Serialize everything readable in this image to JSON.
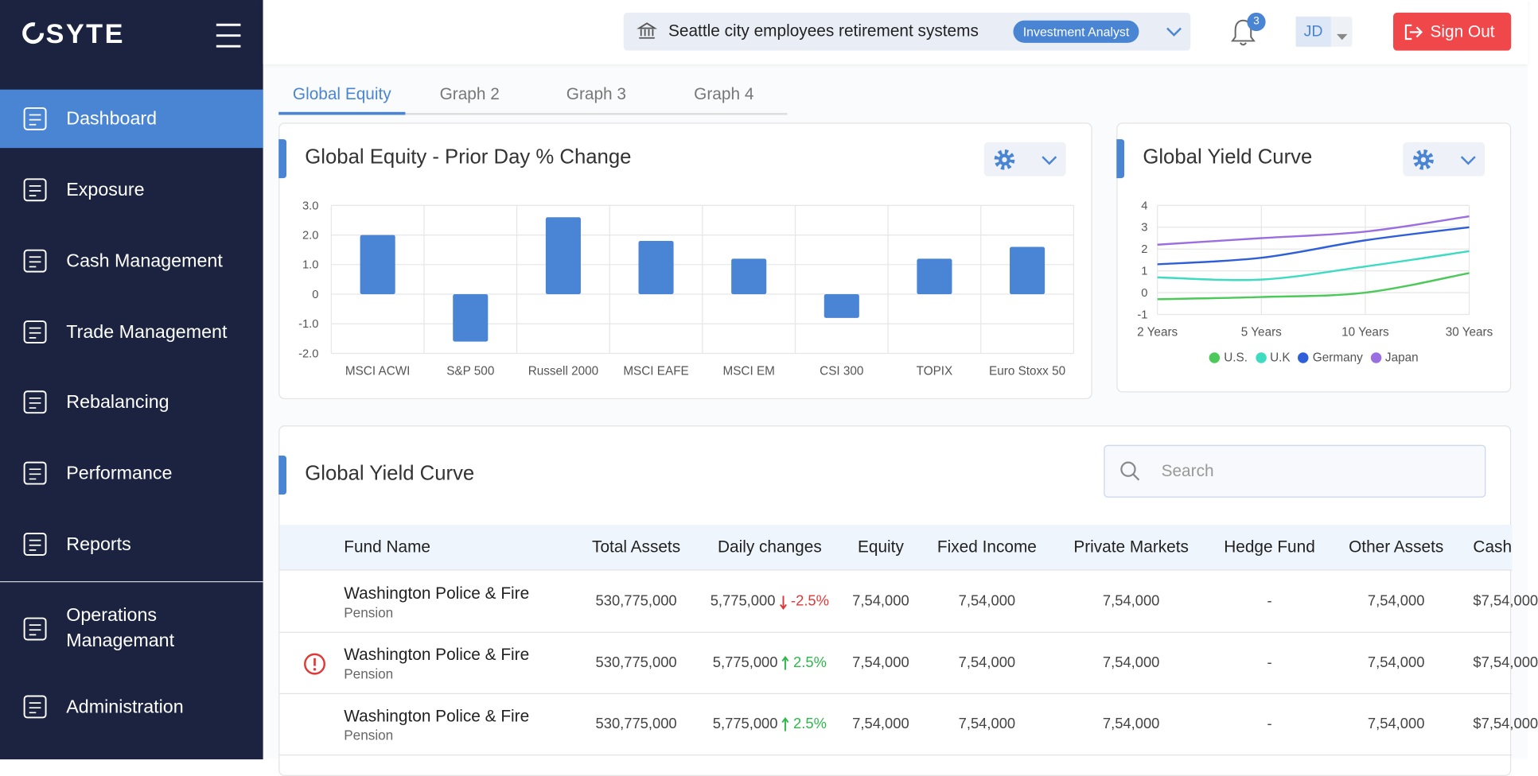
{
  "sidebar": {
    "logo": "SYTE",
    "active": 0,
    "menu": [
      "Dashboard",
      "Exposure",
      "Cash Management",
      "Trade Management",
      "Rebalancing",
      "Performance",
      "Reports",
      "Operations Managemant",
      "Administration"
    ]
  },
  "header": {
    "organization": "Seattle city employees retirement systems",
    "role": "Investment Analyst",
    "notifications": 3,
    "user_initials": "JD",
    "sign_out": "Sign Out"
  },
  "tabs": {
    "active": 0,
    "items": [
      "Global Equity",
      "Graph 2",
      "Graph 3",
      "Graph 4"
    ]
  },
  "bar_chart": {
    "type": "bar",
    "title": "Global Equity - Prior Day % Change",
    "categories": [
      "MSCI ACWI",
      "S&P 500",
      "Russell 2000",
      "MSCI EAFE",
      "MSCI EM",
      "CSI 300",
      "TOPIX",
      "Euro Stoxx 50"
    ],
    "values": [
      2.0,
      -1.6,
      2.6,
      1.8,
      1.2,
      -0.8,
      1.2,
      1.6
    ],
    "color": "#4a84d4",
    "ylim": [
      -2,
      3
    ],
    "yticks": [
      {
        "value": -2,
        "label": "-2.0"
      },
      {
        "value": -1,
        "label": "-1.0"
      },
      0,
      {
        "value": 1,
        "label": "1.0"
      },
      {
        "value": 2,
        "label": "2.0"
      },
      {
        "value": 3,
        "label": "3.0"
      }
    ],
    "grid": true
  },
  "line_chart": {
    "type": "line",
    "title": "Global Yield Curve",
    "categories": [
      "2 Years",
      "5 Years",
      "10 Years",
      "30 Years"
    ],
    "series": [
      {
        "name": "U.S.",
        "color": "#4cc95a",
        "values": [
          -0.3,
          -0.2,
          0.0,
          0.9
        ]
      },
      {
        "name": "U.K",
        "color": "#3ddbc0",
        "values": [
          0.7,
          0.6,
          1.2,
          1.9
        ]
      },
      {
        "name": "Germany",
        "color": "#2f5fd8",
        "values": [
          1.3,
          1.6,
          2.4,
          3.0
        ]
      },
      {
        "name": "Japan",
        "color": "#9b6fe0",
        "values": [
          2.2,
          2.5,
          2.8,
          3.5
        ]
      }
    ],
    "ylim": [
      -1,
      4
    ],
    "yticks": [
      -1,
      0,
      1,
      2,
      3,
      4
    ],
    "grid": true,
    "legend": "bottom"
  },
  "table": {
    "title": "Global Yield Curve",
    "search_placeholder": "Search",
    "columns": [
      "Fund Name",
      "Total Assets",
      "Daily changes",
      "Equity",
      "Fixed Income",
      "Private Markets",
      "Hedge Fund",
      "Other Assets",
      "Cash"
    ],
    "rows": [
      {
        "fund": "Washington Police & Fire",
        "kind": "Pension",
        "alert": false,
        "total_assets": "530,775,000",
        "daily_change": "5,775,000",
        "daily_change_pct": "-2.5%",
        "equity": "7,54,000",
        "fixed_income": "7,54,000",
        "private_markets": "7,54,000",
        "hedge_fund": "-",
        "other_assets": "7,54,000",
        "cash": "$7,54,000"
      },
      {
        "fund": "Washington Police & Fire",
        "kind": "Pension",
        "alert": true,
        "total_assets": "530,775,000",
        "daily_change": "5,775,000",
        "daily_change_pct": "2.5%",
        "equity": "7,54,000",
        "fixed_income": "7,54,000",
        "private_markets": "7,54,000",
        "hedge_fund": "-",
        "other_assets": "7,54,000",
        "cash": "$7,54,000"
      },
      {
        "fund": "Washington Police & Fire",
        "kind": "Pension",
        "alert": false,
        "total_assets": "530,775,000",
        "daily_change": "5,775,000",
        "daily_change_pct": "2.5%",
        "equity": "7,54,000",
        "fixed_income": "7,54,000",
        "private_markets": "7,54,000",
        "hedge_fund": "-",
        "other_assets": "7,54,000",
        "cash": "$7,54,000"
      }
    ]
  }
}
